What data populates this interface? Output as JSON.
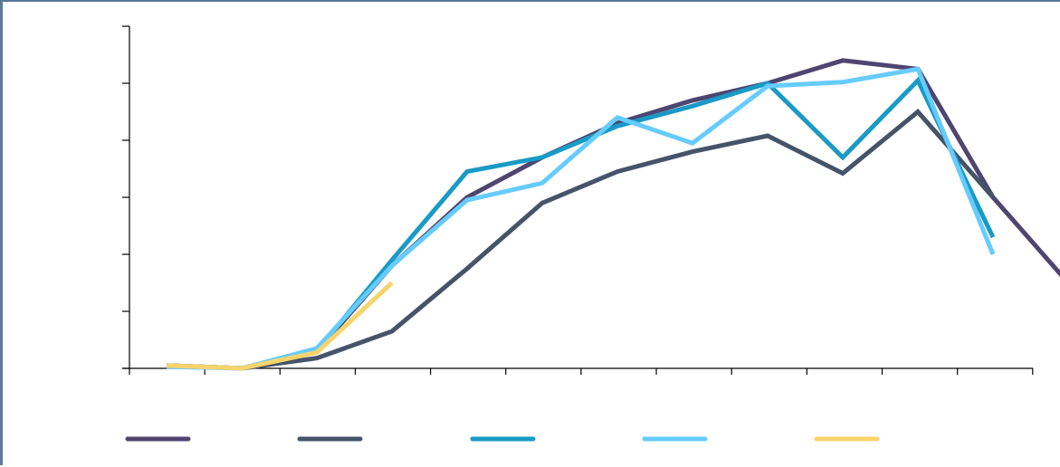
{
  "chart_data": {
    "type": "line",
    "x": [
      1,
      2,
      3,
      4,
      5,
      6,
      7,
      8,
      9,
      10,
      11,
      12,
      13
    ],
    "ylim": [
      0,
      6
    ],
    "y_tick_count": 7,
    "x_tick_count": 13,
    "grid": false,
    "legend_position": "bottom",
    "series": [
      {
        "color": "#4e4570",
        "values": [
          0.05,
          0.0,
          0.3,
          1.8,
          3.0,
          3.7,
          4.3,
          4.7,
          5.0,
          5.4,
          5.25,
          3.0,
          1.5
        ]
      },
      {
        "color": "#455468",
        "values": [
          0.05,
          0.0,
          0.18,
          0.65,
          1.75,
          2.9,
          3.45,
          3.8,
          4.08,
          3.42,
          4.5,
          3.0,
          null
        ]
      },
      {
        "color": "#1a9ac6",
        "values": [
          0.05,
          0.0,
          0.3,
          1.9,
          3.45,
          3.7,
          4.25,
          4.6,
          5.0,
          3.7,
          5.05,
          2.3,
          null
        ]
      },
      {
        "color": "#66ccff",
        "values": [
          0.03,
          0.0,
          0.35,
          1.8,
          2.95,
          3.25,
          4.4,
          3.95,
          4.95,
          5.02,
          5.25,
          2.0,
          null
        ]
      },
      {
        "color": "#f7d46b",
        "values": [
          0.05,
          0.0,
          0.28,
          1.5,
          null,
          null,
          null,
          null,
          null,
          null,
          null,
          null,
          null
        ]
      }
    ]
  }
}
